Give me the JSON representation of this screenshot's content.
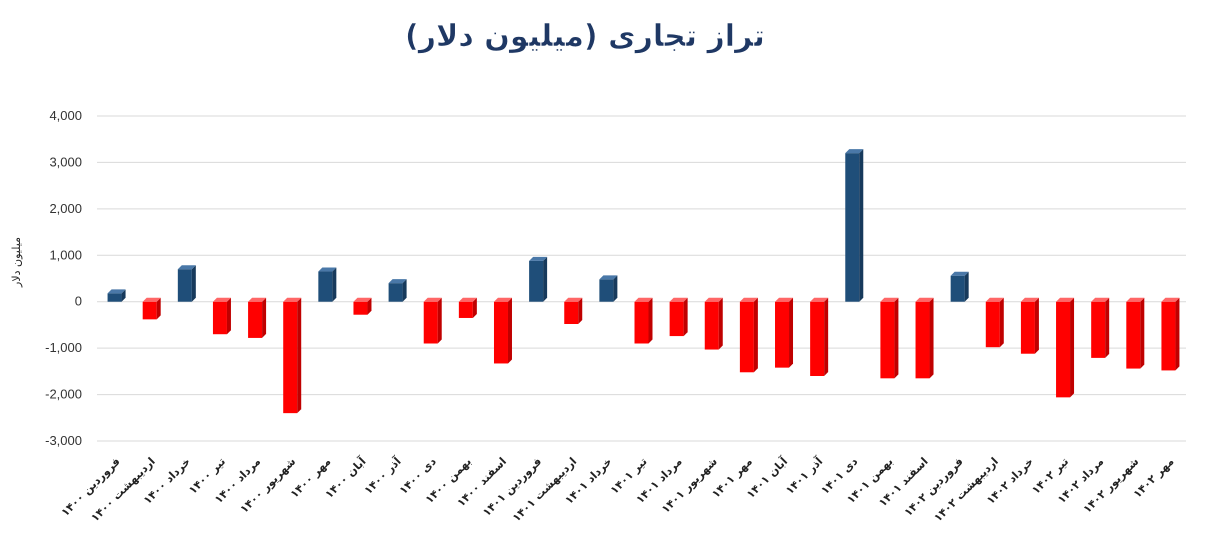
{
  "chart_data": {
    "type": "bar",
    "title": "تراز تجاری (میلیون دلار)",
    "ylabel": "میلیون دلار",
    "xlabel": "",
    "ylim": [
      -3000,
      4000
    ],
    "yticks": [
      4000,
      3000,
      2000,
      1000,
      0,
      -1000,
      -2000,
      -3000
    ],
    "ytick_labels": [
      "4,000",
      "3,000",
      "2,000",
      "1,000",
      "0",
      "-1,000",
      "-2,000",
      "-3,000"
    ],
    "grid": true,
    "legend": "none",
    "categories": [
      "فروردین ۱۴۰۰",
      "اردیبهشت ۱۴۰۰",
      "خرداد ۱۴۰۰",
      "تیر ۱۴۰۰",
      "مرداد ۱۴۰۰",
      "شهریور ۱۴۰۰",
      "مهر ۱۴۰۰",
      "آبان ۱۴۰۰",
      "آذر ۱۴۰۰",
      "دی ۱۴۰۰",
      "بهمن ۱۴۰۰",
      "اسفند ۱۴۰۰",
      "فروردین ۱۴۰۱",
      "اردیبهشت ۱۴۰۱",
      "خرداد ۱۴۰۱",
      "تیر ۱۴۰۱",
      "مرداد ۱۴۰۱",
      "شهریور ۱۴۰۱",
      "مهر ۱۴۰۱",
      "آبان ۱۴۰۱",
      "آذر ۱۴۰۱",
      "دی ۱۴۰۱",
      "بهمن ۱۴۰۱",
      "اسفند ۱۴۰۱",
      "فروردین ۱۴۰۲",
      "اردیبهشت ۱۴۰۲",
      "خرداد ۱۴۰۲",
      "تیر ۱۴۰۲",
      "مرداد ۱۴۰۲",
      "شهریور ۱۴۰۲",
      "مهر ۱۴۰۲"
    ],
    "values": [
      180,
      -380,
      700,
      -700,
      -780,
      -2400,
      650,
      -280,
      400,
      -900,
      -350,
      -1330,
      880,
      -480,
      480,
      -900,
      -740,
      -1030,
      -1520,
      -1420,
      -1600,
      3200,
      -1650,
      -1650,
      560,
      -980,
      -1120,
      -2060,
      -1210,
      -1440,
      -1480
    ],
    "colors": {
      "positive": "#1f4e79",
      "positive_side": "#173a5c",
      "positive_top": "#4a78a8",
      "negative": "#ff0000",
      "negative_side": "#c00000",
      "negative_top": "#ff6666",
      "title": "#1f3864"
    }
  }
}
